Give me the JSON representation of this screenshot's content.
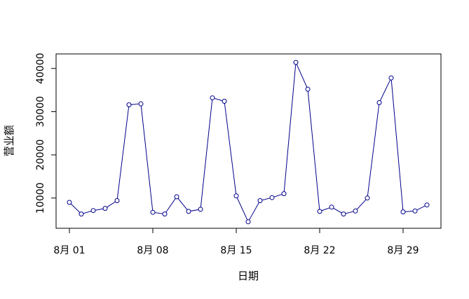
{
  "chart_data": {
    "type": "line",
    "title": "",
    "xlabel": "日期",
    "ylabel": "营业额",
    "x": [
      "2021-08-01",
      "2021-08-02",
      "2021-08-03",
      "2021-08-04",
      "2021-08-05",
      "2021-08-06",
      "2021-08-07",
      "2021-08-08",
      "2021-08-09",
      "2021-08-10",
      "2021-08-11",
      "2021-08-12",
      "2021-08-13",
      "2021-08-14",
      "2021-08-15",
      "2021-08-16",
      "2021-08-17",
      "2021-08-18",
      "2021-08-19",
      "2021-08-20",
      "2021-08-21",
      "2021-08-22",
      "2021-08-23",
      "2021-08-24",
      "2021-08-25",
      "2021-08-26",
      "2021-08-27",
      "2021-08-28",
      "2021-08-29",
      "2021-08-30",
      "2021-08-31"
    ],
    "series": [
      {
        "values": [
          9000,
          6300,
          7100,
          7600,
          9400,
          31600,
          31800,
          6700,
          6300,
          10300,
          6900,
          7400,
          33200,
          32400,
          10500,
          4500,
          9400,
          10100,
          11000,
          41400,
          35200,
          6900,
          7900,
          6300,
          7000,
          10000,
          32100,
          37800,
          6800,
          7000,
          8400
        ]
      }
    ],
    "xticks": [
      "8月 01",
      "8月 08",
      "8月 15",
      "8月 22",
      "8月 29"
    ],
    "yticks": [
      "10000",
      "20000",
      "30000",
      "40000"
    ],
    "ylim": [
      3000,
      43000
    ],
    "grid": false,
    "legend": "none",
    "line_color": "#00008b",
    "marker": "open-circle"
  }
}
